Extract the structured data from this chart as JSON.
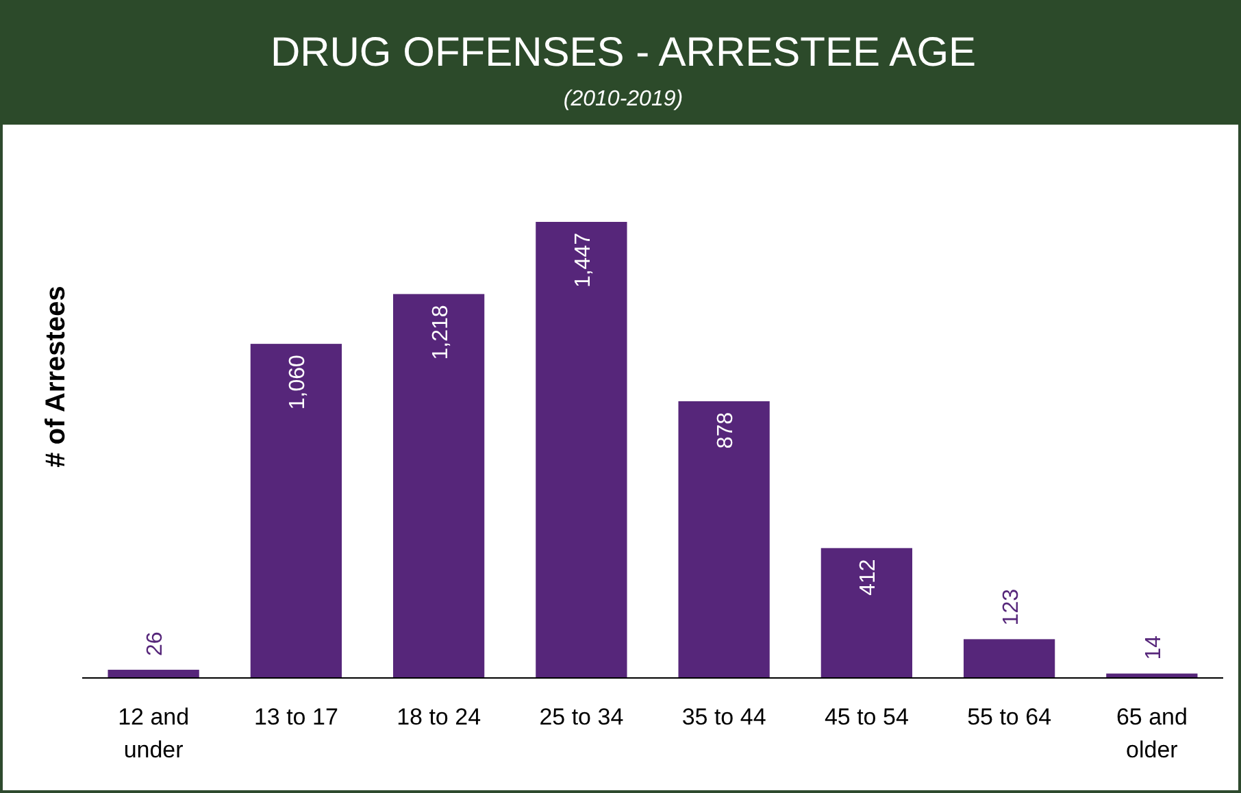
{
  "chart_data": {
    "type": "bar",
    "title": "DRUG OFFENSES - ARRESTEE AGE",
    "subtitle": "(2010-2019)",
    "ylabel": "# of Arrestees",
    "categories": [
      "12 and under",
      "13 to 17",
      "18 to 24",
      "25 to 34",
      "35 to 44",
      "45 to 54",
      "55 to 64",
      "65 and older"
    ],
    "values": [
      26,
      1060,
      1218,
      1447,
      878,
      412,
      123,
      14
    ],
    "color": "#56267a",
    "data_labels": true,
    "value_labels": [
      "26",
      "1,060",
      "1,218",
      "1,447",
      "878",
      "412",
      "123",
      "14"
    ]
  }
}
